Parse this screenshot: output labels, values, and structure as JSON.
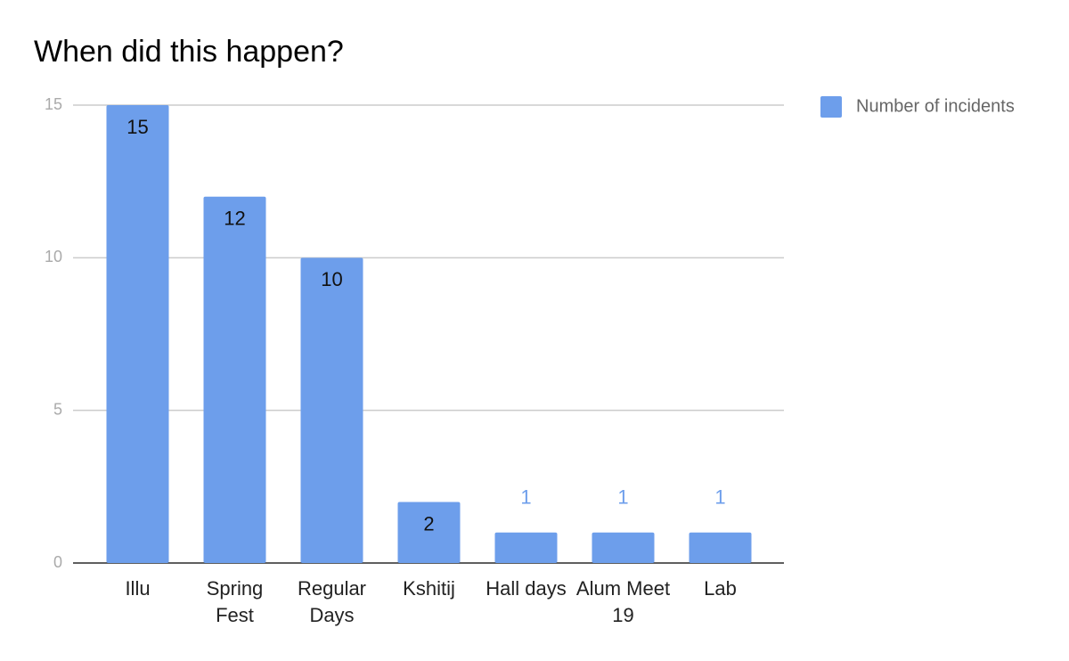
{
  "chart_data": {
    "type": "bar",
    "title": "When did this happen?",
    "categories": [
      "Illu",
      "Spring Fest",
      "Regular Days",
      "Kshitij",
      "Hall days",
      "Alum Meet 19",
      "Lab"
    ],
    "series": [
      {
        "name": "Number of incidents",
        "color": "#6d9eeb",
        "values": [
          15,
          12,
          10,
          2,
          1,
          1,
          1
        ]
      }
    ],
    "ylim": [
      0,
      15
    ],
    "yticks": [
      0,
      5,
      10,
      15
    ],
    "grid": true,
    "legend": "right"
  }
}
